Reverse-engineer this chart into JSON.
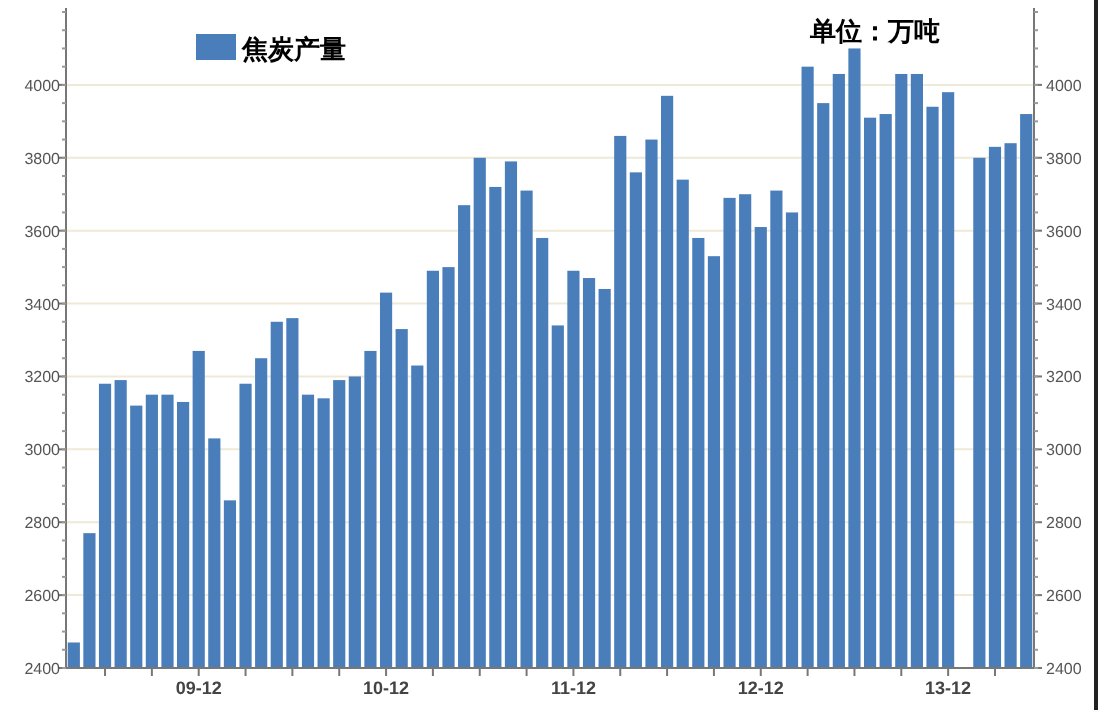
{
  "chart_data": {
    "type": "bar",
    "categories": [
      null,
      null,
      null,
      null,
      null,
      null,
      null,
      null,
      "09-12",
      null,
      null,
      null,
      null,
      null,
      null,
      null,
      null,
      null,
      null,
      null,
      "10-12",
      null,
      null,
      null,
      null,
      null,
      null,
      null,
      null,
      null,
      null,
      null,
      "11-12",
      null,
      null,
      null,
      null,
      null,
      null,
      null,
      null,
      null,
      null,
      null,
      "12-12",
      null,
      null,
      null,
      null,
      null,
      null,
      null,
      null,
      null,
      null,
      null,
      "13-12",
      null,
      null,
      null,
      null,
      null
    ],
    "series": [
      {
        "name": "焦炭产量",
        "color": "#4a7ebb",
        "values": [
          2470,
          2770,
          3180,
          3190,
          3120,
          3150,
          3150,
          3130,
          3270,
          3030,
          2860,
          3180,
          3250,
          3350,
          3360,
          3150,
          3140,
          3190,
          3200,
          3270,
          3430,
          3330,
          3230,
          3490,
          3500,
          3670,
          3800,
          3720,
          3790,
          3710,
          3580,
          3340,
          3490,
          3470,
          3440,
          3860,
          3760,
          3850,
          3970,
          3740,
          3580,
          3530,
          3690,
          3700,
          3610,
          3710,
          3650,
          4050,
          3950,
          4030,
          4100,
          3910,
          3920,
          4030,
          4030,
          3940,
          3980,
          null,
          3800,
          3830,
          3840,
          3920
        ]
      }
    ],
    "ylim": [
      2400,
      4200
    ],
    "yticks": [
      2400,
      2600,
      2800,
      3000,
      3200,
      3400,
      3600,
      3800,
      4000
    ],
    "y2lim": [
      2400,
      4200
    ],
    "y2ticks": [
      2400,
      2600,
      2800,
      3000,
      3200,
      3400,
      3600,
      3800,
      4000
    ],
    "grid": "y",
    "legend": "top left",
    "annotations": [
      "单位：万吨"
    ]
  }
}
